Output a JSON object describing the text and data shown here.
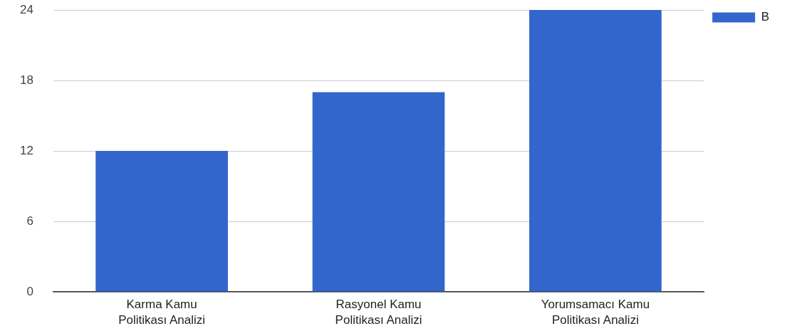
{
  "chart_data": {
    "type": "bar",
    "categories": [
      "Karma Kamu Politikası Analizi",
      "Rasyonel Kamu Politikası Analizi",
      "Yorumsamacı Kamu Politikası Analizi"
    ],
    "series": [
      {
        "name": "B",
        "color": "#3366cc",
        "values": [
          12,
          17,
          24
        ]
      }
    ],
    "ylim": [
      0,
      24
    ],
    "yticks": [
      0,
      6,
      12,
      18,
      24
    ],
    "grid": "y",
    "legend": "top right"
  }
}
